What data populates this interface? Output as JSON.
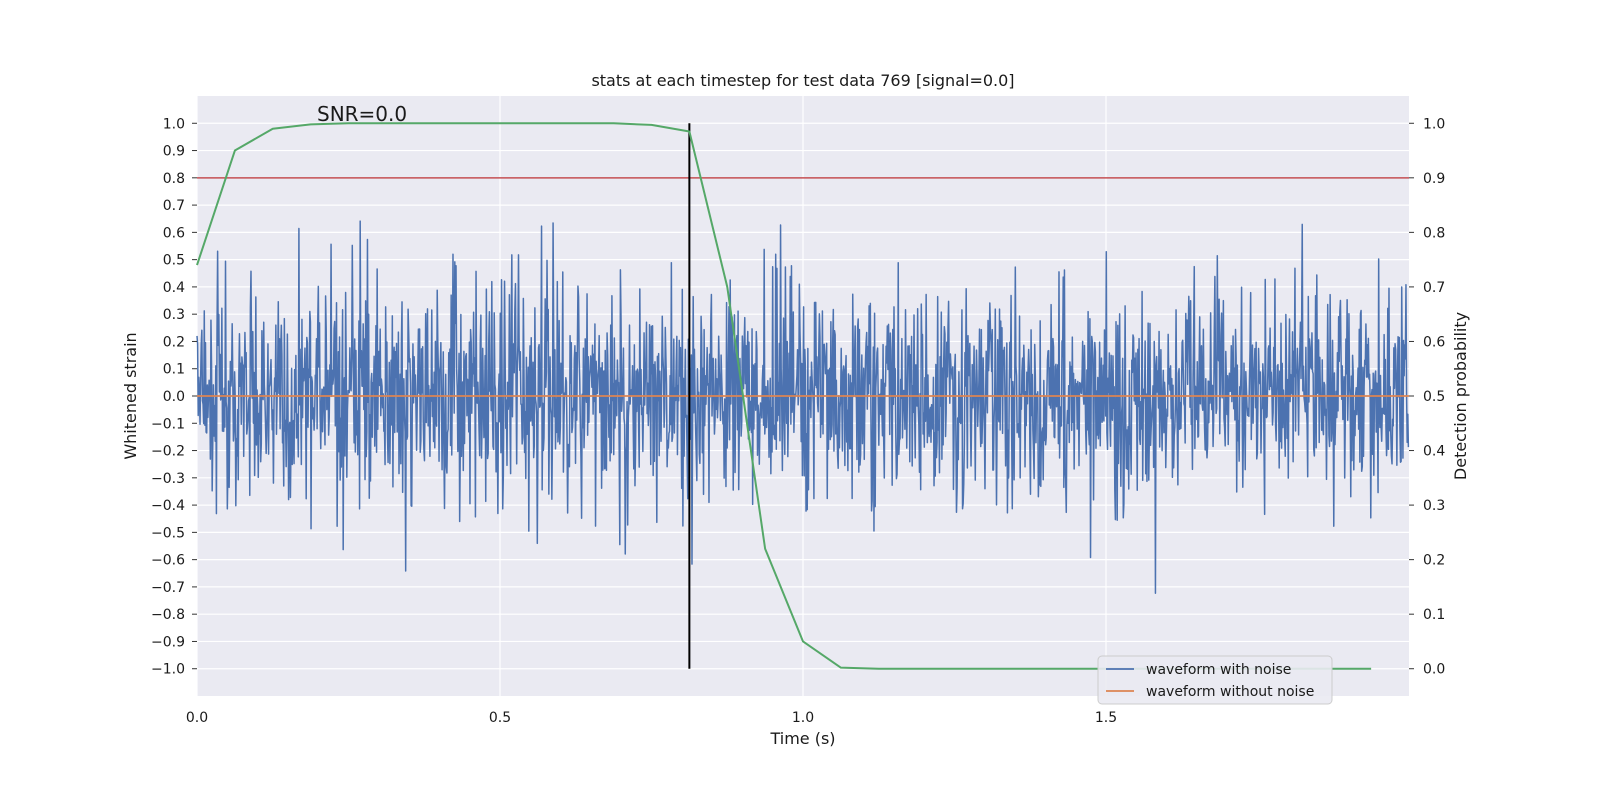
{
  "chart_data": {
    "type": "line",
    "title": "stats at each timestep for test data 769 [signal=0.0]",
    "annotation": "SNR=0.0",
    "xlabel": "Time (s)",
    "ylabel": "Whitened strain",
    "y2label": "Detection probability",
    "xlim": [
      0.0,
      2.0
    ],
    "ylim": [
      -1.1,
      1.1
    ],
    "y2lim": [
      -0.05,
      1.05
    ],
    "xticks": [
      0.0,
      0.5,
      1.0,
      1.5
    ],
    "xtick_labels": [
      "0.0",
      "0.5",
      "1.0",
      "1.5"
    ],
    "yticks": [
      -1.0,
      -0.9,
      -0.8,
      -0.7,
      -0.6,
      -0.5,
      -0.4,
      -0.3,
      -0.2,
      -0.1,
      0.0,
      0.1,
      0.2,
      0.3,
      0.4,
      0.5,
      0.6,
      0.7,
      0.8,
      0.9,
      1.0
    ],
    "ytick_labels": [
      "−1.0",
      "−0.9",
      "−0.8",
      "−0.7",
      "−0.6",
      "−0.5",
      "−0.4",
      "−0.3",
      "−0.2",
      "−0.1",
      "0.0",
      "0.1",
      "0.2",
      "0.3",
      "0.4",
      "0.5",
      "0.6",
      "0.7",
      "0.8",
      "0.9",
      "1.0"
    ],
    "y2ticks": [
      0.0,
      0.1,
      0.2,
      0.3,
      0.4,
      0.5,
      0.6,
      0.7,
      0.8,
      0.9,
      1.0
    ],
    "y2tick_labels": [
      "0.0",
      "0.1",
      "0.2",
      "0.3",
      "0.4",
      "0.5",
      "0.6",
      "0.7",
      "0.8",
      "0.9",
      "1.0"
    ],
    "grid": true,
    "legend_position": "lower-right",
    "series": [
      {
        "name": "waveform with noise",
        "color": "#4c72b0",
        "axis": "left",
        "noise": {
          "samples": 1998,
          "sigma": 0.2,
          "range": [
            -1.0,
            1.0
          ],
          "seed": 769
        }
      },
      {
        "name": "waveform without noise",
        "color": "#dd8452",
        "axis": "left",
        "x": [
          0.0,
          2.0
        ],
        "y": [
          0.0,
          0.0
        ]
      },
      {
        "name": "",
        "color": "#55a868",
        "axis": "right",
        "x": [
          0.0,
          0.0625,
          0.125,
          0.1875,
          0.25,
          0.3125,
          0.375,
          0.4375,
          0.5,
          0.5625,
          0.625,
          0.6875,
          0.75,
          0.8125,
          0.875,
          0.9375,
          1.0,
          1.0625,
          1.125,
          1.1875,
          1.25,
          1.3125,
          1.375,
          1.4375,
          1.5,
          1.5625,
          1.625,
          1.6875,
          1.75,
          1.8125,
          1.875,
          1.9375
        ],
        "y": [
          0.74,
          0.95,
          0.99,
          0.998,
          1.0,
          1.0,
          1.0,
          1.0,
          1.0,
          1.0,
          1.0,
          1.0,
          0.997,
          0.985,
          0.7,
          0.22,
          0.05,
          0.002,
          0.0,
          0.0,
          0.0,
          0.0,
          0.0,
          0.0,
          0.0,
          0.0,
          0.0,
          0.0,
          0.0,
          0.0,
          0.0,
          0.0
        ]
      }
    ],
    "threshold": {
      "axis": "right",
      "value": 0.9,
      "color": "#c44e52"
    },
    "vline": {
      "x": 0.8125,
      "color": "#000000"
    }
  }
}
